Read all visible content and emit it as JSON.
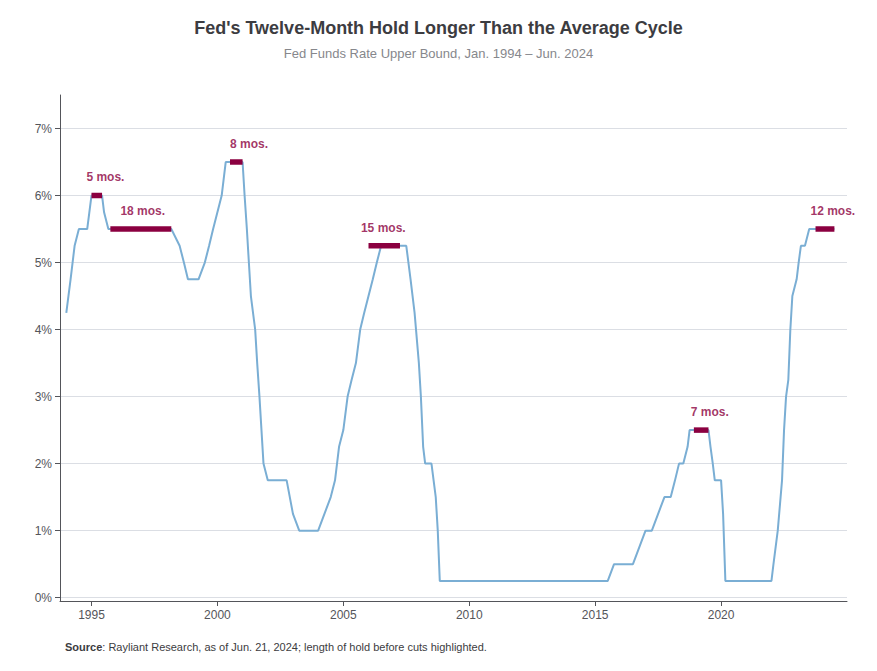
{
  "chart_data": {
    "type": "line",
    "title": "Fed's Twelve-Month Hold Longer Than the Average Cycle",
    "subtitle": "Fed Funds Rate Upper Bound, Jan. 1994 – Jun. 2024",
    "source_label": "Source",
    "source_text": ": Rayliant Research, as of Jun. 21, 2024; length of hold before cuts highlighted.",
    "color": "#7aaed4",
    "grid": "y",
    "annotations": [
      {
        "text": "5 mos.",
        "x": 1994.8,
        "y": 6.18,
        "x_start": 1995.0,
        "x_end": 1995.42,
        "level": 6.0,
        "color": "#8b0040"
      },
      {
        "text": "18 mos.",
        "x": 1996.15,
        "y": 5.68,
        "x_start": 1995.75,
        "x_end": 1998.17,
        "level": 5.5,
        "color": "#8b0040"
      },
      {
        "text": "8 mos.",
        "x": 2000.5,
        "y": 6.68,
        "x_start": 2000.5,
        "x_end": 2001.0,
        "level": 6.5,
        "color": "#8b0040"
      },
      {
        "text": "15 mos.",
        "x": 2005.7,
        "y": 5.43,
        "x_start": 2006.0,
        "x_end": 2007.25,
        "level": 5.25,
        "color": "#8b0040"
      },
      {
        "text": "7 mos.",
        "x": 2018.8,
        "y": 2.68,
        "x_start": 2018.92,
        "x_end": 2019.5,
        "level": 2.5,
        "color": "#8b0040"
      },
      {
        "text": "12 mos.",
        "x": 2023.55,
        "y": 5.68,
        "x_start": 2023.75,
        "x_end": 2024.5,
        "level": 5.5,
        "color": "#8b0040"
      }
    ],
    "x": [
      1994.0,
      1994.17,
      1994.33,
      1994.5,
      1994.67,
      1994.83,
      1995.0,
      1995.17,
      1995.33,
      1995.42,
      1995.5,
      1995.67,
      1995.75,
      1996.0,
      1996.25,
      1996.5,
      1996.75,
      1997.0,
      1997.25,
      1997.5,
      1997.75,
      1998.0,
      1998.17,
      1998.5,
      1998.67,
      1998.83,
      1999.0,
      1999.25,
      1999.5,
      1999.67,
      1999.83,
      2000.0,
      2000.17,
      2000.33,
      2000.5,
      2000.75,
      2001.0,
      2001.08,
      2001.17,
      2001.25,
      2001.33,
      2001.5,
      2001.58,
      2001.67,
      2001.75,
      2001.83,
      2002.0,
      2002.25,
      2002.5,
      2002.75,
      2003.0,
      2003.25,
      2003.5,
      2003.75,
      2004.0,
      2004.25,
      2004.5,
      2004.67,
      2004.83,
      2005.0,
      2005.17,
      2005.33,
      2005.5,
      2005.67,
      2005.83,
      2006.0,
      2006.17,
      2006.33,
      2006.5,
      2006.67,
      2006.83,
      2007.0,
      2007.17,
      2007.25,
      2007.5,
      2007.67,
      2007.75,
      2007.83,
      2008.0,
      2008.08,
      2008.17,
      2008.25,
      2008.5,
      2008.67,
      2008.75,
      2008.83,
      2009.0,
      2009.5,
      2010.0,
      2010.5,
      2011.0,
      2011.5,
      2012.0,
      2012.5,
      2013.0,
      2013.5,
      2014.0,
      2014.5,
      2015.0,
      2015.5,
      2015.75,
      2016.0,
      2016.5,
      2016.75,
      2017.0,
      2017.25,
      2017.5,
      2017.75,
      2018.0,
      2018.17,
      2018.33,
      2018.5,
      2018.67,
      2018.75,
      2018.92,
      2019.0,
      2019.25,
      2019.5,
      2019.58,
      2019.67,
      2019.75,
      2020.0,
      2020.08,
      2020.17,
      2020.25,
      2020.5,
      2020.75,
      2021.0,
      2021.25,
      2021.5,
      2021.75,
      2022.0,
      2022.08,
      2022.25,
      2022.42,
      2022.5,
      2022.58,
      2022.67,
      2022.75,
      2022.83,
      2023.0,
      2023.08,
      2023.17,
      2023.33,
      2023.5,
      2023.75,
      2024.0,
      2024.25,
      2024.5
    ],
    "values": [
      4.25,
      4.75,
      5.25,
      5.5,
      5.5,
      5.5,
      6.0,
      6.0,
      6.0,
      6.0,
      5.75,
      5.5,
      5.5,
      5.5,
      5.5,
      5.5,
      5.5,
      5.5,
      5.5,
      5.5,
      5.5,
      5.5,
      5.5,
      5.25,
      5.0,
      4.75,
      4.75,
      4.75,
      5.0,
      5.25,
      5.5,
      5.75,
      6.0,
      6.5,
      6.5,
      6.5,
      6.5,
      6.0,
      5.5,
      5.0,
      4.5,
      4.0,
      3.5,
      3.0,
      2.5,
      2.0,
      1.75,
      1.75,
      1.75,
      1.75,
      1.25,
      1.0,
      1.0,
      1.0,
      1.0,
      1.25,
      1.5,
      1.75,
      2.25,
      2.5,
      3.0,
      3.25,
      3.5,
      4.0,
      4.25,
      4.5,
      4.75,
      5.0,
      5.25,
      5.25,
      5.25,
      5.25,
      5.25,
      5.25,
      5.25,
      4.75,
      4.5,
      4.25,
      3.5,
      3.0,
      2.25,
      2.0,
      2.0,
      1.5,
      1.0,
      0.25,
      0.25,
      0.25,
      0.25,
      0.25,
      0.25,
      0.25,
      0.25,
      0.25,
      0.25,
      0.25,
      0.25,
      0.25,
      0.25,
      0.25,
      0.5,
      0.5,
      0.5,
      0.75,
      1.0,
      1.0,
      1.25,
      1.5,
      1.5,
      1.75,
      2.0,
      2.0,
      2.25,
      2.5,
      2.5,
      2.5,
      2.5,
      2.5,
      2.25,
      2.0,
      1.75,
      1.75,
      1.25,
      0.25,
      0.25,
      0.25,
      0.25,
      0.25,
      0.25,
      0.25,
      0.25,
      0.25,
      0.5,
      1.0,
      1.75,
      2.5,
      3.0,
      3.25,
      4.0,
      4.5,
      4.75,
      5.0,
      5.25,
      5.25,
      5.5,
      5.5,
      5.5,
      5.5,
      5.5
    ],
    "xlim": [
      1993.75,
      2025.0
    ],
    "ylim": [
      -0.05,
      7.5
    ],
    "xticks": [
      1995,
      2000,
      2005,
      2010,
      2015,
      2020
    ],
    "yticks": [
      {
        "value": 0,
        "label": "0%"
      },
      {
        "value": 1,
        "label": "1%"
      },
      {
        "value": 2,
        "label": "2%"
      },
      {
        "value": 3,
        "label": "3%"
      },
      {
        "value": 4,
        "label": "4%"
      },
      {
        "value": 5,
        "label": "5%"
      },
      {
        "value": 6,
        "label": "6%"
      },
      {
        "value": 7,
        "label": "7%"
      }
    ]
  }
}
